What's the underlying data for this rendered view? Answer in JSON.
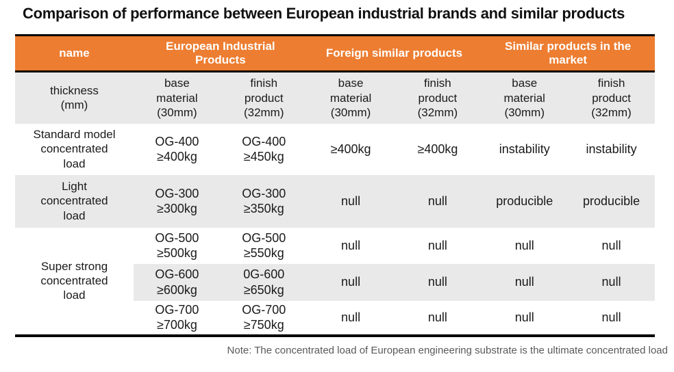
{
  "title": "Comparison of performance between European industrial brands and similar products",
  "note": "Note: The concentrated load of European engineering substrate is the ultimate concentrated load",
  "colors": {
    "header_bg": "#ED7D31",
    "header_text": "#ffffff",
    "stripe_bg": "#E9E9E9",
    "border": "#000000",
    "note_text": "#595959"
  },
  "table": {
    "group_headers": [
      {
        "label": "name"
      },
      {
        "label": "European Industrial\nProducts"
      },
      {
        "label": "Foreign similar products"
      },
      {
        "label": "Similar products in the\nmarket"
      }
    ],
    "sub_header": {
      "label": "thickness\n(mm)",
      "cols": [
        "base\nmaterial\n(30mm)",
        "finish\nproduct\n(32mm)",
        "base\nmaterial\n(30mm)",
        "finish\nproduct\n(32mm)",
        "base\nmaterial\n(30mm)",
        "finish\nproduct\n(32mm)"
      ]
    },
    "rows": [
      {
        "label": "Standard model\nconcentrated\nload",
        "cells": [
          "OG-400\n≥400kg",
          "OG-400\n≥450kg",
          "≥400kg",
          "≥400kg",
          "instability",
          "instability"
        ]
      },
      {
        "label": "Light\nconcentrated\nload",
        "cells": [
          "OG-300\n≥300kg",
          "OG-300\n≥350kg",
          "null",
          "null",
          "producible",
          "producible"
        ]
      },
      {
        "label": "Super strong\nconcentrated\nload",
        "cells": [
          "OG-500\n≥500kg",
          "OG-500\n≥550kg",
          "null",
          "null",
          "null",
          "null"
        ]
      },
      {
        "cells": [
          "OG-600\n≥600kg",
          "0G-600\n≥650kg",
          "null",
          "null",
          "null",
          "null"
        ]
      },
      {
        "cells": [
          "OG-700\n≥700kg",
          "OG-700\n≥750kg",
          "null",
          "null",
          "null",
          "null"
        ]
      }
    ]
  }
}
